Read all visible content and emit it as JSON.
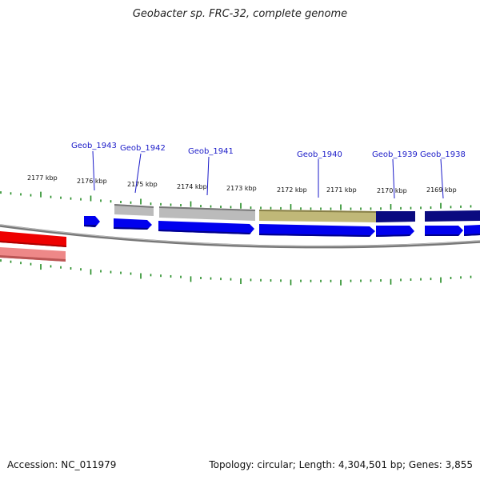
{
  "title": "Geobacter sp. FRC-32, complete genome",
  "footer": {
    "accession": "Accession: NC_011979",
    "summary": "Topology: circular; Length: 4,304,501 bp; Genes: 3,855"
  },
  "scale_labels": [
    "2177 kbp",
    "2176 kbp",
    "2175 kbp",
    "2174 kbp",
    "2173 kbp",
    "2172 kbp",
    "2171 kbp",
    "2170 kbp",
    "2169 kbp"
  ],
  "gene_labels": [
    "Geob_1943",
    "Geob_1942",
    "Geob_1941",
    "Geob_1940",
    "Geob_1939",
    "Geob_1938"
  ],
  "colors": {
    "cds_forward": "#0000ee",
    "gene_gray": "#bbbbbb",
    "gene_olive": "#c0b878",
    "gene_navy": "#0a0a80",
    "reverse_red": "#ee0000",
    "reverse_pink": "#ee8888",
    "tick_green": "#228b22",
    "backbone": "#777777"
  }
}
